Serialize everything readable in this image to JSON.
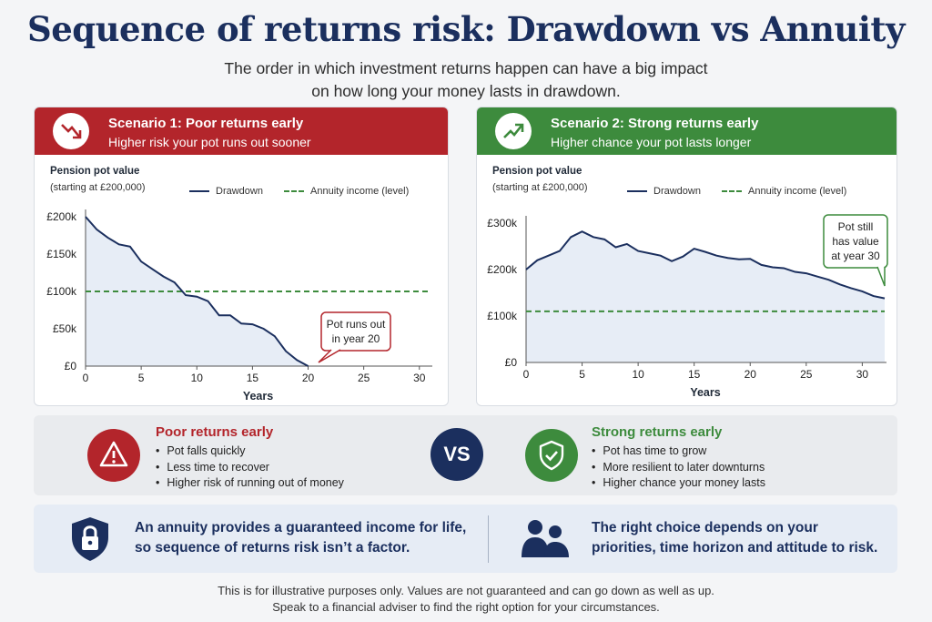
{
  "title": "Sequence of returns risk: Drawdown vs Annuity",
  "subtitle": [
    "The order in which investment returns happen can have a big impact",
    "on how long your money lasts in drawdown."
  ],
  "panel1": {
    "title": "Scenario 1: Poor returns early",
    "subtitle": "Higher risk your pot runs out sooner",
    "icon": "trend-down-icon",
    "ylabel": "Pension pot value",
    "ylabel_note": "(starting at £200,000)",
    "legend_drawdown": "Drawdown",
    "legend_annuity": "Annuity income (level)",
    "callout": [
      "Pot runs out",
      "in year 20"
    ],
    "accent": "#b3252b"
  },
  "panel2": {
    "title": "Scenario 2: Strong returns early",
    "subtitle": "Higher chance your pot lasts longer",
    "icon": "trend-up-icon",
    "ylabel": "Pension pot value",
    "ylabel_note": "(starting at £200,000)",
    "legend_drawdown": "Drawdown",
    "legend_annuity": "Annuity income (level)",
    "callout": [
      "Pot still",
      "has value",
      "at year 30"
    ],
    "accent": "#3d8b3d"
  },
  "chart_data": [
    {
      "type": "area",
      "title": "Scenario 1: Poor returns early",
      "xlabel": "Years",
      "ylabel": "Pension pot value",
      "xlim": [
        0,
        31
      ],
      "ylim": [
        0,
        200000
      ],
      "xticks": [
        0,
        5,
        10,
        15,
        20,
        25,
        30
      ],
      "yticks": [
        0,
        50000,
        100000,
        150000,
        200000
      ],
      "ytick_labels": [
        "£0",
        "£50k",
        "£100k",
        "£150k",
        "£200k"
      ],
      "grid": false,
      "legend": "top-right",
      "series": [
        {
          "name": "Drawdown",
          "x": [
            0,
            1,
            2,
            3,
            4,
            5,
            6,
            7,
            8,
            9,
            10,
            11,
            12,
            13,
            14,
            15,
            16,
            17,
            18,
            19,
            20
          ],
          "values": [
            200000,
            183000,
            172000,
            163000,
            160000,
            140000,
            130000,
            120000,
            112000,
            95000,
            93000,
            87000,
            68000,
            68000,
            57000,
            56000,
            50000,
            40000,
            20000,
            8000,
            0
          ]
        },
        {
          "name": "Annuity income (level)",
          "x": [
            0,
            31
          ],
          "values": [
            100000,
            100000
          ]
        }
      ],
      "annotation": "Pot runs out in year 20"
    },
    {
      "type": "area",
      "title": "Scenario 2: Strong returns early",
      "xlabel": "Years",
      "ylabel": "Pension pot value",
      "xlim": [
        0,
        32
      ],
      "ylim": [
        0,
        300000
      ],
      "xticks": [
        0,
        5,
        10,
        15,
        20,
        25,
        30
      ],
      "yticks": [
        0,
        100000,
        200000,
        300000
      ],
      "ytick_labels": [
        "£0",
        "£100k",
        "£200k",
        "£300k"
      ],
      "grid": false,
      "legend": "top-right",
      "series": [
        {
          "name": "Drawdown",
          "x": [
            0,
            1,
            2,
            3,
            4,
            5,
            6,
            7,
            8,
            9,
            10,
            11,
            12,
            13,
            14,
            15,
            16,
            17,
            18,
            19,
            20,
            21,
            22,
            23,
            24,
            25,
            26,
            27,
            28,
            29,
            30,
            31,
            32
          ],
          "values": [
            200000,
            220000,
            230000,
            240000,
            270000,
            282000,
            270000,
            265000,
            248000,
            255000,
            240000,
            235000,
            230000,
            218000,
            228000,
            245000,
            238000,
            230000,
            225000,
            222000,
            223000,
            210000,
            205000,
            203000,
            195000,
            192000,
            185000,
            178000,
            168000,
            160000,
            153000,
            143000,
            138000
          ]
        },
        {
          "name": "Annuity income (level)",
          "x": [
            0,
            32
          ],
          "values": [
            110000,
            110000
          ]
        }
      ],
      "annotation": "Pot still has value at year 30"
    }
  ],
  "compare": {
    "left_title": "Poor returns early",
    "left_items": [
      "Pot falls quickly",
      "Less time to recover",
      "Higher risk of running out of money"
    ],
    "vs": "VS",
    "right_title": "Strong returns early",
    "right_items": [
      "Pot has time to grow",
      "More resilient to later downturns",
      "Higher chance your money lasts"
    ],
    "left_icon": "warning-icon",
    "right_icon": "shield-check-icon"
  },
  "info": {
    "left": [
      "An annuity provides a guaranteed income for life,",
      "so sequence of returns risk isn’t a factor."
    ],
    "right": [
      "The right choice depends on your",
      "priorities, time horizon and attitude to risk."
    ],
    "left_icon": "lock-shield-icon",
    "right_icon": "people-icon"
  },
  "footer": [
    "This is for illustrative purposes only. Values are not guaranteed and can go down as well as up.",
    "Speak to a financial adviser to find the right option for your circumstances."
  ],
  "colors": {
    "navy": "#1b2f5e",
    "red": "#b3252b",
    "green": "#3d8b3d"
  }
}
